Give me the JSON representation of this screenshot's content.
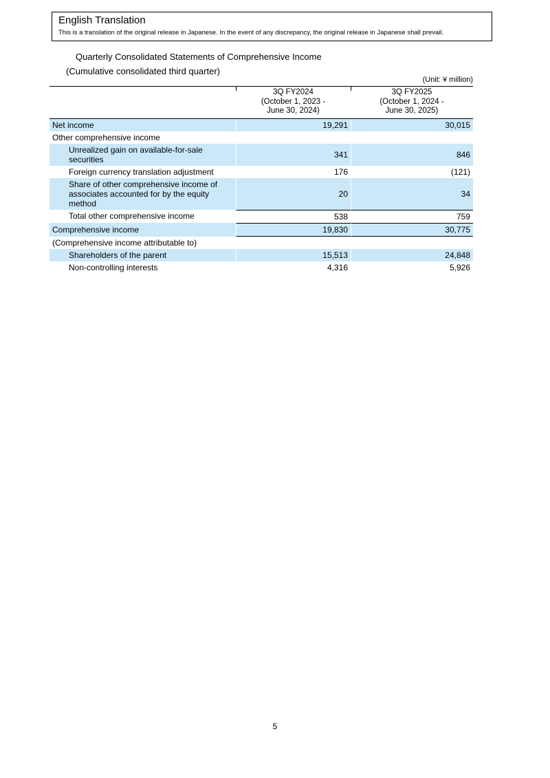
{
  "translation_notice": {
    "title": "English Translation",
    "body": "This is a translation of the original release in Japanese. In the event of any discrepancy, the original release in Japanese shall prevail."
  },
  "document": {
    "title": "Quarterly Consolidated Statements of Comprehensive Income",
    "subtitle": "(Cumulative consolidated third quarter)",
    "unit_note": "(Unit: ¥ million)",
    "page_number": "5"
  },
  "table": {
    "columns": {
      "fy2024": {
        "line1": "3Q FY2024",
        "line2": "(October 1, 2023 -",
        "line3": "June 30, 2024)"
      },
      "fy2025": {
        "line1": "3Q FY2025",
        "line2": "(October 1, 2024 -",
        "line3": "June 30, 2025)"
      }
    },
    "rows": [
      {
        "label": "Net income",
        "fy2024": "19,291",
        "fy2025": "30,015"
      },
      {
        "label": "Other comprehensive income",
        "fy2024": "",
        "fy2025": ""
      },
      {
        "label": "Unrealized gain on available-for-sale securities",
        "fy2024": "341",
        "fy2025": "846"
      },
      {
        "label": "Foreign currency translation adjustment",
        "fy2024": "176",
        "fy2025": "(121)"
      },
      {
        "label": "Share of other comprehensive income of associates accounted for by the equity method",
        "fy2024": "20",
        "fy2025": "34"
      },
      {
        "label": "Total other comprehensive income",
        "fy2024": "538",
        "fy2025": "759"
      },
      {
        "label": "Comprehensive income",
        "fy2024": "19,830",
        "fy2025": "30,775"
      },
      {
        "label": "(Comprehensive income attributable to)",
        "fy2024": "",
        "fy2025": ""
      },
      {
        "label": "Shareholders of the parent",
        "fy2024": "15,513",
        "fy2025": "24,848"
      },
      {
        "label": "Non-controlling interests",
        "fy2024": "4,316",
        "fy2025": "5,926"
      }
    ]
  },
  "colors": {
    "row_highlight": "#cbe8f9",
    "border": "#000000"
  }
}
